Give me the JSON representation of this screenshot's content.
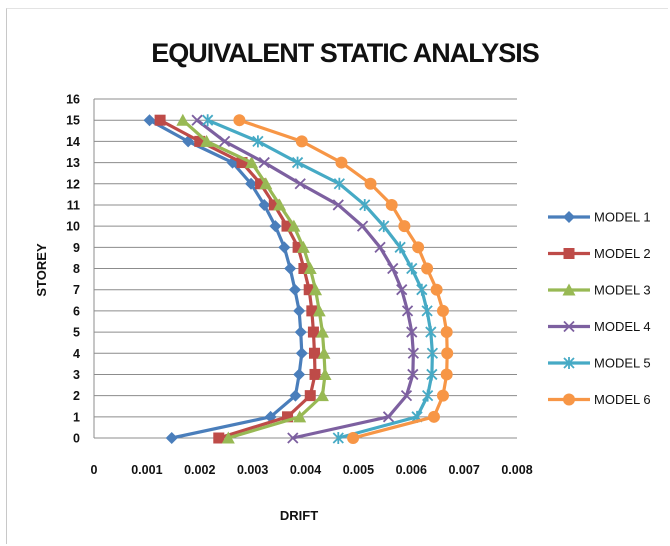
{
  "chart_data": {
    "type": "line",
    "title": "EQUIVALENT STATIC ANALYSIS",
    "xlabel": "DRIFT",
    "ylabel": "STOREY",
    "xlim": [
      0,
      0.008
    ],
    "ylim": [
      0,
      16
    ],
    "x_ticks": [
      "0",
      "0.001",
      "0.002",
      "0.003",
      "0.004",
      "0.005",
      "0.006",
      "0.007",
      "0.008"
    ],
    "y_ticks": [
      "0",
      "1",
      "2",
      "3",
      "4",
      "5",
      "6",
      "7",
      "8",
      "9",
      "10",
      "11",
      "12",
      "13",
      "14",
      "15",
      "16"
    ],
    "grid": "horizontal",
    "legend_position": "right",
    "storeys": [
      0,
      1,
      2,
      3,
      4,
      5,
      6,
      7,
      8,
      9,
      10,
      11,
      12,
      13,
      14,
      15
    ],
    "series": [
      {
        "name": "MODEL 1",
        "color": "#4a7ebb",
        "marker": "diamond",
        "values": [
          0.00147,
          0.00334,
          0.00381,
          0.00388,
          0.00393,
          0.00391,
          0.00388,
          0.0038,
          0.00371,
          0.0036,
          0.00343,
          0.00322,
          0.00297,
          0.00262,
          0.00178,
          0.00105
        ]
      },
      {
        "name": "MODEL 2",
        "color": "#be4b48",
        "marker": "square",
        "values": [
          0.00236,
          0.00366,
          0.00409,
          0.00418,
          0.00417,
          0.00415,
          0.00412,
          0.00407,
          0.00397,
          0.00386,
          0.00365,
          0.00341,
          0.00315,
          0.0028,
          0.002,
          0.00125
        ]
      },
      {
        "name": "MODEL 3",
        "color": "#98b954",
        "marker": "triangle",
        "values": [
          0.00254,
          0.00389,
          0.00432,
          0.00437,
          0.00435,
          0.00432,
          0.00426,
          0.00419,
          0.00409,
          0.00396,
          0.00378,
          0.00351,
          0.00325,
          0.00298,
          0.00213,
          0.00168
        ]
      },
      {
        "name": "MODEL 4",
        "color": "#7d60a0",
        "marker": "x",
        "values": [
          0.00376,
          0.00557,
          0.00591,
          0.00603,
          0.00604,
          0.00601,
          0.00593,
          0.00582,
          0.00565,
          0.00541,
          0.00508,
          0.00462,
          0.0039,
          0.00322,
          0.00247,
          0.00195
        ]
      },
      {
        "name": "MODEL 5",
        "color": "#46aac5",
        "marker": "star",
        "values": [
          0.00462,
          0.00611,
          0.00631,
          0.00639,
          0.0064,
          0.00637,
          0.0063,
          0.0062,
          0.00601,
          0.00579,
          0.00548,
          0.00512,
          0.00464,
          0.00385,
          0.0031,
          0.00215
        ]
      },
      {
        "name": "MODEL 6",
        "color": "#f79646",
        "marker": "circle",
        "values": [
          0.0049,
          0.00643,
          0.0066,
          0.00667,
          0.00668,
          0.00667,
          0.0066,
          0.00648,
          0.0063,
          0.00613,
          0.00587,
          0.00563,
          0.00523,
          0.00468,
          0.00393,
          0.00275
        ]
      }
    ]
  }
}
